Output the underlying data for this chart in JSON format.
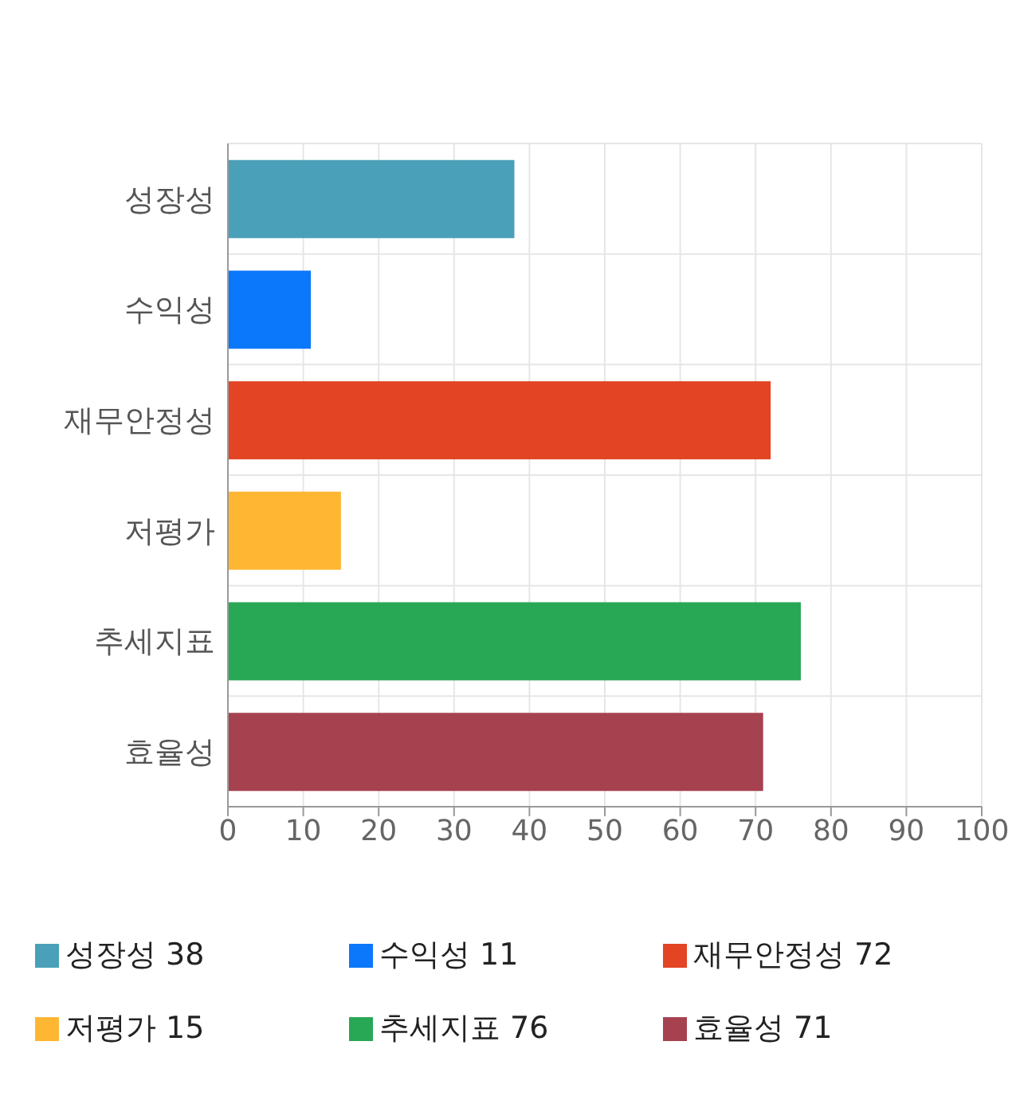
{
  "chart_data": {
    "type": "bar",
    "orientation": "horizontal",
    "stacked": true,
    "categories": [
      "성장성",
      "수익성",
      "재무안정성",
      "저평가",
      "추세지표",
      "효율성"
    ],
    "series": [
      {
        "name": "성장성 38",
        "color": "#4aa0b8",
        "values": [
          38,
          null,
          null,
          null,
          null,
          null
        ]
      },
      {
        "name": "수익성 11",
        "color": "#0b77fb",
        "values": [
          null,
          11,
          null,
          null,
          null,
          null
        ]
      },
      {
        "name": "재무안정성 72",
        "color": "#e24424",
        "values": [
          null,
          null,
          72,
          null,
          null,
          null
        ]
      },
      {
        "name": "저평가 15",
        "color": "#ffb733",
        "values": [
          null,
          null,
          null,
          15,
          null,
          null
        ]
      },
      {
        "name": "추세지표 76",
        "color": "#28a755",
        "values": [
          null,
          null,
          null,
          null,
          76,
          null
        ]
      },
      {
        "name": "효율성 71",
        "color": "#a6414f",
        "values": [
          null,
          null,
          null,
          null,
          null,
          71
        ]
      }
    ],
    "xlim": [
      0,
      100
    ],
    "xticks": [
      0,
      10,
      20,
      30,
      40,
      50,
      60,
      70,
      80,
      90,
      100
    ],
    "grid": true,
    "legend": "bottom"
  }
}
